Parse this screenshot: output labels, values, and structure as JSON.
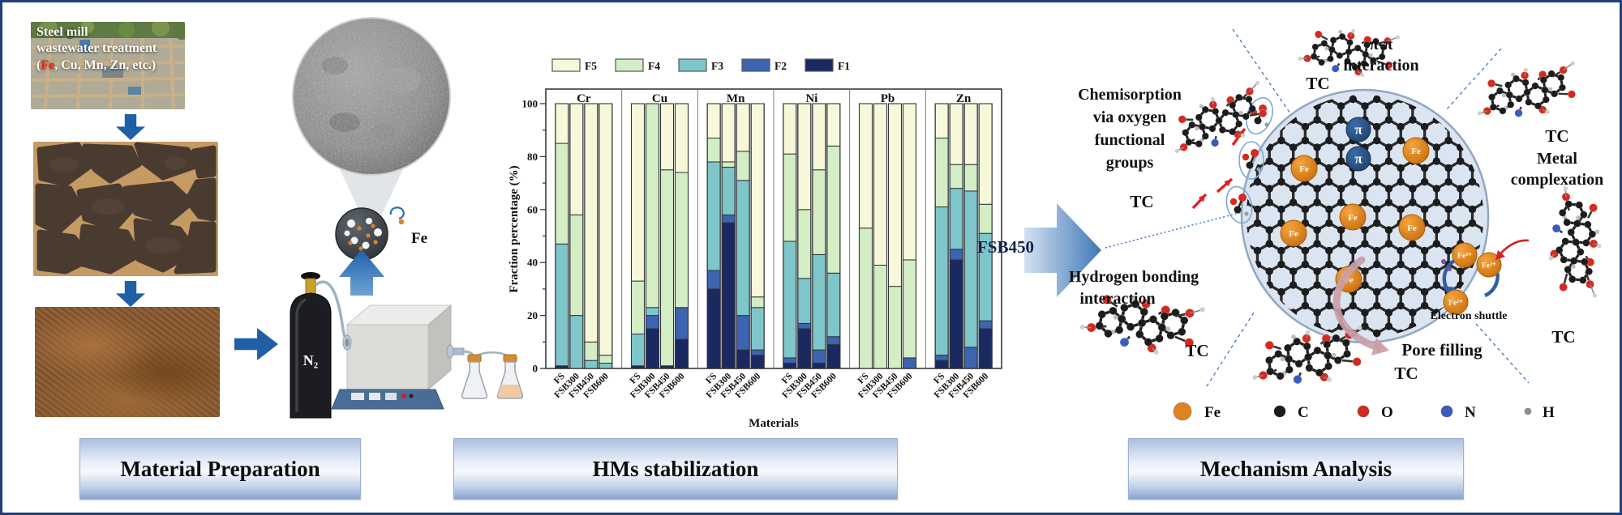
{
  "colors": {
    "figure_border": "#20407c",
    "process_arrow_blue": "#1f5fa8",
    "fe_orange": "#e0821f",
    "f5": "#f7f7d9",
    "f4": "#d3edc5",
    "f3": "#7ec6c9",
    "f2": "#3c64b0",
    "f1": "#1a2a61"
  },
  "banners": {
    "left": "Material Preparation",
    "middle": "HMs stabilization",
    "right": "Mechanism Analysis"
  },
  "left_panel": {
    "photo_caption": {
      "line1": "Steel mill",
      "line2": "wastewater treatment",
      "line3_pre": "(",
      "line3_fe": "Fe",
      "line3_post": ", Cu, Mn, Zn, etc.)"
    },
    "n2_label": "N₂",
    "fe_particle_label": "Fe"
  },
  "flow": {
    "fsb450_label": "FSB450"
  },
  "chart_data": {
    "type": "bar",
    "stacked": true,
    "xlabel": "Materials",
    "ylabel": "Fraction percentage (%)",
    "ylim": [
      0,
      100
    ],
    "yticks": [
      0,
      20,
      40,
      60,
      80,
      100
    ],
    "legend": [
      "F5",
      "F4",
      "F3",
      "F2",
      "F1"
    ],
    "legend_position": "top-left",
    "grid": false,
    "groups": [
      "Cr",
      "Cu",
      "Mn",
      "Ni",
      "Pb",
      "Zn"
    ],
    "materials": [
      "FS",
      "FSB300",
      "FSB450",
      "FSB600"
    ],
    "stack_order_bottom_to_top": [
      "F1",
      "F2",
      "F3",
      "F4",
      "F5"
    ],
    "series": [
      {
        "name": "F1",
        "color": "#1a2a61",
        "values": {
          "Cr": [
            1,
            0,
            0,
            0
          ],
          "Cu": [
            1,
            15,
            1,
            11
          ],
          "Mn": [
            30,
            55,
            7,
            5
          ],
          "Ni": [
            2,
            15,
            2,
            9
          ],
          "Pb": [
            0,
            0,
            0,
            0
          ],
          "Zn": [
            3,
            41,
            0,
            15
          ]
        }
      },
      {
        "name": "F2",
        "color": "#3c64b0",
        "values": {
          "Cr": [
            0,
            0,
            0,
            0
          ],
          "Cu": [
            0,
            5,
            0,
            12
          ],
          "Mn": [
            7,
            3,
            13,
            2
          ],
          "Ni": [
            2,
            2,
            5,
            3
          ],
          "Pb": [
            0,
            0,
            0,
            4
          ],
          "Zn": [
            2,
            4,
            8,
            3
          ]
        }
      },
      {
        "name": "F3",
        "color": "#7ec6c9",
        "values": {
          "Cr": [
            46,
            20,
            3,
            2
          ],
          "Cu": [
            12,
            3,
            0,
            0
          ],
          "Mn": [
            41,
            18,
            51,
            16
          ],
          "Ni": [
            44,
            17,
            36,
            24
          ],
          "Pb": [
            0,
            0,
            0,
            0
          ],
          "Zn": [
            56,
            23,
            59,
            33
          ]
        }
      },
      {
        "name": "F4",
        "color": "#d3edc5",
        "values": {
          "Cr": [
            38,
            38,
            7,
            3
          ],
          "Cu": [
            20,
            77,
            74,
            51
          ],
          "Mn": [
            9,
            2,
            11,
            4
          ],
          "Ni": [
            33,
            26,
            32,
            48
          ],
          "Pb": [
            53,
            39,
            31,
            37
          ],
          "Zn": [
            26,
            9,
            10,
            11
          ]
        }
      },
      {
        "name": "F5",
        "color": "#f7f7d9",
        "values": {
          "Cr": [
            15,
            42,
            90,
            95
          ],
          "Cu": [
            67,
            0,
            25,
            26
          ],
          "Mn": [
            13,
            22,
            18,
            73
          ],
          "Ni": [
            19,
            40,
            25,
            16
          ],
          "Pb": [
            47,
            61,
            69,
            59
          ],
          "Zn": [
            13,
            23,
            23,
            38
          ]
        }
      }
    ]
  },
  "mechanism": {
    "tc_label": "TC",
    "pi_symbol": "π",
    "labels": {
      "chemisorption_lines": [
        "Chemisorption",
        "via oxygen",
        "functional",
        "groups"
      ],
      "pi_pi_lines": [
        "π-π",
        "interaction"
      ],
      "metal_complexation_lines": [
        "Metal",
        "complexation"
      ],
      "hydrogen_bonding_lines": [
        "Hydrogen bonding",
        "interaction"
      ],
      "electron_shuttle": "Electron shuttle",
      "pore_filling": "Pore filling"
    },
    "fe_ion_labels": [
      "Fe³⁺",
      "Fe²⁺",
      "Fe²⁺"
    ],
    "atom_legend": [
      {
        "label": "Fe",
        "color": "#e0821f"
      },
      {
        "label": "C",
        "color": "#1c1c1c"
      },
      {
        "label": "O",
        "color": "#d42a20"
      },
      {
        "label": "N",
        "color": "#3a5cc0"
      },
      {
        "label": "H",
        "color": "#8f8f8f"
      }
    ]
  }
}
